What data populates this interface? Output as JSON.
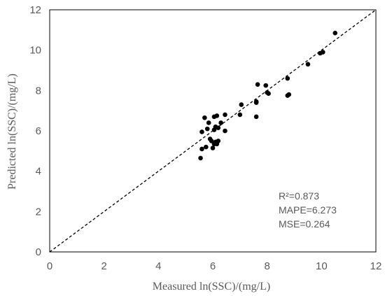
{
  "chart_data": {
    "type": "scatter",
    "title": "",
    "xlabel": "Measured ln(SSC)/(mg/L)",
    "ylabel": "Predicted ln(SSC)/(mg/L)",
    "xlim": [
      0,
      12
    ],
    "ylim": [
      0,
      12
    ],
    "x_ticks": [
      "0",
      "2",
      "4",
      "6",
      "8",
      "10",
      "12"
    ],
    "y_ticks": [
      "0",
      "2",
      "4",
      "6",
      "8",
      "10",
      "12"
    ],
    "grid": false,
    "legend": "none",
    "reference_line": {
      "style": "dashed",
      "from": [
        0,
        0
      ],
      "to": [
        12,
        12
      ]
    },
    "annotations": [
      "R²=0.873",
      "MAPE=6.273",
      "MSE=0.264"
    ],
    "marker_color": "#000000",
    "points": [
      {
        "x": 5.55,
        "y": 4.65
      },
      {
        "x": 5.6,
        "y": 5.1
      },
      {
        "x": 5.75,
        "y": 5.2
      },
      {
        "x": 5.6,
        "y": 5.95
      },
      {
        "x": 5.7,
        "y": 6.65
      },
      {
        "x": 5.8,
        "y": 6.1
      },
      {
        "x": 5.85,
        "y": 6.4
      },
      {
        "x": 5.9,
        "y": 5.6
      },
      {
        "x": 5.95,
        "y": 5.5
      },
      {
        "x": 6.0,
        "y": 5.15
      },
      {
        "x": 6.05,
        "y": 5.35
      },
      {
        "x": 6.1,
        "y": 5.45
      },
      {
        "x": 6.15,
        "y": 5.35
      },
      {
        "x": 6.2,
        "y": 5.5
      },
      {
        "x": 6.05,
        "y": 6.05
      },
      {
        "x": 6.1,
        "y": 6.2
      },
      {
        "x": 6.2,
        "y": 6.15
      },
      {
        "x": 6.05,
        "y": 6.7
      },
      {
        "x": 6.15,
        "y": 6.75
      },
      {
        "x": 6.3,
        "y": 6.4
      },
      {
        "x": 6.45,
        "y": 6.0
      },
      {
        "x": 6.45,
        "y": 6.8
      },
      {
        "x": 7.0,
        "y": 6.8
      },
      {
        "x": 7.05,
        "y": 7.3
      },
      {
        "x": 7.6,
        "y": 7.4
      },
      {
        "x": 7.6,
        "y": 7.45
      },
      {
        "x": 7.6,
        "y": 6.7
      },
      {
        "x": 7.65,
        "y": 8.3
      },
      {
        "x": 7.95,
        "y": 8.25
      },
      {
        "x": 8.0,
        "y": 7.9
      },
      {
        "x": 8.05,
        "y": 7.85
      },
      {
        "x": 8.75,
        "y": 8.6
      },
      {
        "x": 8.75,
        "y": 7.75
      },
      {
        "x": 8.8,
        "y": 7.8
      },
      {
        "x": 9.5,
        "y": 9.3
      },
      {
        "x": 9.95,
        "y": 9.85
      },
      {
        "x": 10.05,
        "y": 9.9
      },
      {
        "x": 10.5,
        "y": 10.85
      }
    ]
  }
}
